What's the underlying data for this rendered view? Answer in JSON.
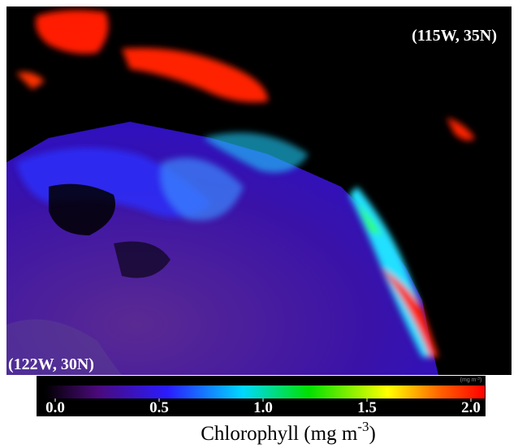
{
  "map": {
    "corner_labels": {
      "top_right": "(115W, 35N)",
      "bottom_left": "(122W, 30N)"
    },
    "colorbar": {
      "range": [
        0,
        2
      ],
      "ticks": [
        {
          "value": 0,
          "label": "0.0"
        },
        {
          "value": 0.5,
          "label": "0.5"
        },
        {
          "value": 1,
          "label": "1.0"
        },
        {
          "value": 1.5,
          "label": "1.5"
        },
        {
          "value": 2,
          "label": "2.0"
        }
      ],
      "unit_text": "(mg m",
      "unit_superscript": "-3",
      "unit_close": ")"
    },
    "label": {
      "text": "Chlorophyll (mg m",
      "superscript": "-3",
      "close": ")"
    }
  }
}
